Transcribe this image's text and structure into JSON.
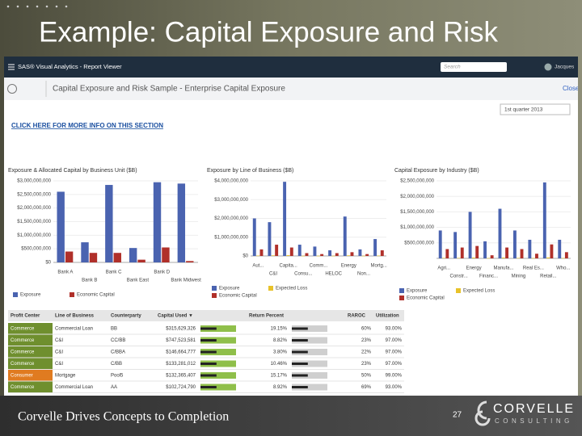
{
  "slide": {
    "title": "Example: Capital Exposure and Risk",
    "footer": "Corvelle Drives Concepts to Completion",
    "page_number": "27",
    "logo_name": "CORVELLE",
    "logo_sub": "CONSULTING"
  },
  "app": {
    "name": "SAS® Visual Analytics - Report Viewer",
    "search": "Search",
    "user": "Jacques",
    "report_title": "Capital Exposure and Risk Sample - Enterprise Capital Exposure",
    "close": "Close",
    "period": "1st quarter 2013",
    "link": "CLICK HERE FOR MORE INFO ON THIS SECTION"
  },
  "chart_data": [
    {
      "type": "bar",
      "title": "Exposure & Allocated Capital by Business Unit ($B)",
      "categories": [
        "Bank A",
        "Bank B",
        "Bank C",
        "Bank East",
        "Bank D",
        "Bank Midwest"
      ],
      "series": [
        {
          "name": "Exposure",
          "color": "#4a63b0",
          "values": [
            2600000000,
            740000000,
            2850000000,
            530000000,
            2950000000,
            2900000000
          ]
        },
        {
          "name": "Economic Capital",
          "color": "#b0302a",
          "values": [
            400000000,
            350000000,
            350000000,
            100000000,
            550000000,
            50000000
          ]
        }
      ],
      "ylim": [
        0,
        3000000000
      ],
      "yticks": [
        {
          "value": 0,
          "label": "$0"
        },
        {
          "value": 500000000,
          "label": "$500,000,000"
        },
        {
          "value": 1000000000,
          "label": "$1,000,000,000"
        },
        {
          "value": 1500000000,
          "label": "$1,500,000,000"
        },
        {
          "value": 2000000000,
          "label": "$2,000,000,000"
        },
        {
          "value": 2500000000,
          "label": "$2,500,000,000"
        },
        {
          "value": 3000000000,
          "label": "$3,000,000,000"
        }
      ],
      "grid": true
    },
    {
      "type": "bar",
      "title": "Exposure by Line of Business ($B)",
      "categories": [
        "Aut...",
        "C&I",
        "Capita...",
        "Consu...",
        "Comm...",
        "HELOC",
        "Energy",
        "Non...",
        "Mortg..."
      ],
      "series": [
        {
          "name": "Exposure",
          "color": "#4a63b0",
          "values": [
            2000000000,
            1800000000,
            3950000000,
            600000000,
            500000000,
            300000000,
            2100000000,
            350000000,
            900000000
          ]
        },
        {
          "name": "Expected Loss",
          "color": "#e8c22a",
          "values": [
            20000000,
            30000000,
            40000000,
            10000000,
            10000000,
            10000000,
            30000000,
            10000000,
            20000000
          ]
        },
        {
          "name": "Economic Capital",
          "color": "#b0302a",
          "values": [
            350000000,
            600000000,
            450000000,
            150000000,
            100000000,
            150000000,
            200000000,
            100000000,
            300000000
          ]
        }
      ],
      "ylim": [
        0,
        4000000000
      ],
      "yticks": [
        {
          "value": 0,
          "label": "$0"
        },
        {
          "value": 1000000000,
          "label": "$1,000,000,000"
        },
        {
          "value": 2000000000,
          "label": "$2,000,000,000"
        },
        {
          "value": 3000000000,
          "label": "$3,000,000,000"
        },
        {
          "value": 4000000000,
          "label": "$4,000,000,000"
        }
      ],
      "grid": true
    },
    {
      "type": "bar",
      "title": "Capital Exposure by Industry ($B)",
      "categories": [
        "Agri...",
        "Constr...",
        "Energy",
        "Financ...",
        "Manufa...",
        "Mining",
        "Real Es...",
        "Retail...",
        "Who..."
      ],
      "series": [
        {
          "name": "Exposure",
          "color": "#4a63b0",
          "values": [
            900000000,
            850000000,
            1500000000,
            550000000,
            1600000000,
            900000000,
            600000000,
            2450000000,
            600000000
          ]
        },
        {
          "name": "Expected Loss",
          "color": "#e8c22a",
          "values": [
            15000000,
            15000000,
            25000000,
            10000000,
            25000000,
            15000000,
            10000000,
            30000000,
            10000000
          ]
        },
        {
          "name": "Economic Capital",
          "color": "#b0302a",
          "values": [
            300000000,
            350000000,
            400000000,
            100000000,
            350000000,
            300000000,
            150000000,
            450000000,
            200000000
          ]
        }
      ],
      "ylim": [
        0,
        2500000000
      ],
      "yticks": [
        {
          "value": 500000000,
          "label": "$500,000,000"
        },
        {
          "value": 1000000000,
          "label": "$1,000,000,000"
        },
        {
          "value": 1500000000,
          "label": "$1,500,000,000"
        },
        {
          "value": 2000000000,
          "label": "$2,000,000,000"
        },
        {
          "value": 2500000000,
          "label": "$2,500,000,000"
        }
      ],
      "grid": true
    }
  ],
  "table": {
    "columns": [
      "Profit Center",
      "Line of Business",
      "Counterparty",
      "Capital Used ▼",
      "Return Percent",
      "RAROC",
      "Utilization"
    ],
    "rows": [
      [
        "Commerce",
        "Commercial Loan",
        "BB",
        "$315,629,326",
        "19.15%",
        "60%",
        "93.00%"
      ],
      [
        "Commerce",
        "C&I",
        "CC/BB",
        "$747,523,581",
        "8.82%",
        "23%",
        "97.00%"
      ],
      [
        "Commerce",
        "C&I",
        "C/BBA",
        "$146,664,777",
        "3.80%",
        "22%",
        "97.00%"
      ],
      [
        "Commerce",
        "C&I",
        "C/BB",
        "$133,281,012",
        "10.46%",
        "23%",
        "97.00%"
      ],
      [
        "Consumer",
        "Mortgage",
        "Pool5",
        "$132,365,407",
        "15.17%",
        "50%",
        "99.00%"
      ],
      [
        "Commerce",
        "Commercial Loan",
        "AA",
        "$102,724,790",
        "8.92%",
        "69%",
        "93.00%"
      ]
    ],
    "row_colors": [
      "#6f8f2e",
      "#6f8f2e",
      "#6f8f2e",
      "#6f8f2e",
      "#e07b20",
      "#6f8f2e"
    ]
  }
}
